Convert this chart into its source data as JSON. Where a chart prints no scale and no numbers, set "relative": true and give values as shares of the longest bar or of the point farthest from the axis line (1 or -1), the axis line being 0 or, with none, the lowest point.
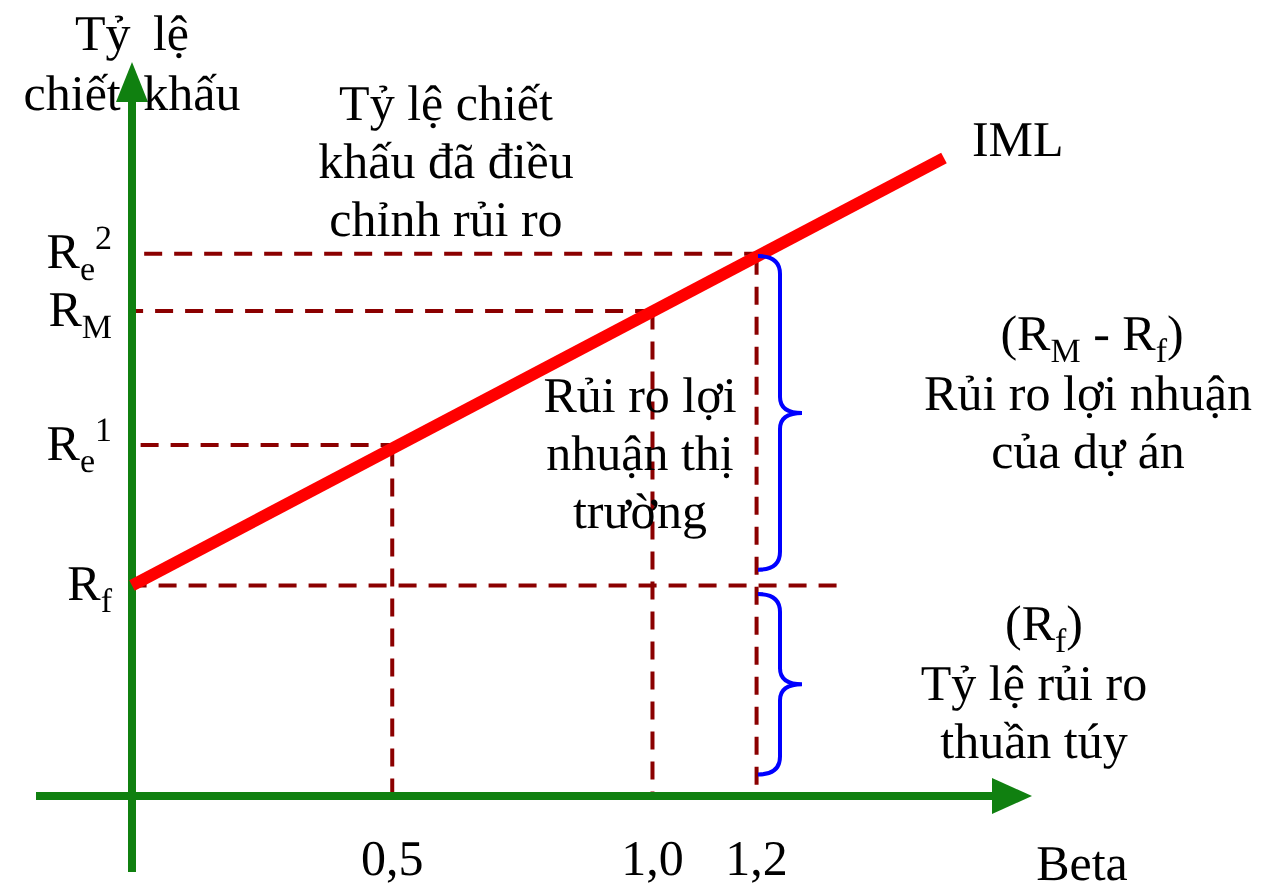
{
  "chart_data": {
    "type": "line",
    "relative": true,
    "x": [
      0,
      1.56
    ],
    "series": [
      {
        "name": "IML",
        "color": "#ff0000",
        "values": [
          0.33,
          1
        ]
      }
    ],
    "xlim": [
      0,
      1.66
    ],
    "xticks": [
      {
        "value": 0.5,
        "label": "0,5"
      },
      {
        "value": 1.0,
        "label": "1,0"
      },
      {
        "value": 1.2,
        "label": "1,2"
      }
    ],
    "xlabel": "Beta",
    "ylabel": "Tỷ lệ chiết khấu",
    "ref_lines": [
      {
        "axis": "y",
        "value": 0.33,
        "label": "R$_{f}$",
        "color": "#8b0000",
        "line_style": "dashed"
      },
      {
        "axis": "y",
        "value": 0.55,
        "label": "R$_{e}$$^{1}$",
        "color": "#8b0000",
        "line_style": "dashed"
      },
      {
        "axis": "y",
        "value": 0.76,
        "label": "R$_{M}$",
        "color": "#8b0000",
        "line_style": "dashed"
      },
      {
        "axis": "y",
        "value": 0.85,
        "label": "R$_{e}$$^{2}$",
        "color": "#8b0000",
        "line_style": "dashed"
      },
      {
        "axis": "x",
        "value": 0.5,
        "color": "#8b0000",
        "line_style": "dashed"
      },
      {
        "axis": "x",
        "value": 1.0,
        "color": "#8b0000",
        "line_style": "dashed"
      },
      {
        "axis": "x",
        "value": 1.2,
        "color": "#8b0000",
        "line_style": "dashed"
      }
    ],
    "annotations": [
      "Tỷ lệ chiết khấu đã điều chỉnh rủi ro",
      "Rủi ro lợi nhuận thị trường",
      "(R$_{M}$ - R$_{f}$)",
      "Rủi ro lợi nhuận của dự án",
      "(R$_{f}$)",
      "Tỷ lệ rủi ro thuần túy"
    ],
    "legend": false,
    "grid": false,
    "marker": "none",
    "line_style": "solid"
  }
}
